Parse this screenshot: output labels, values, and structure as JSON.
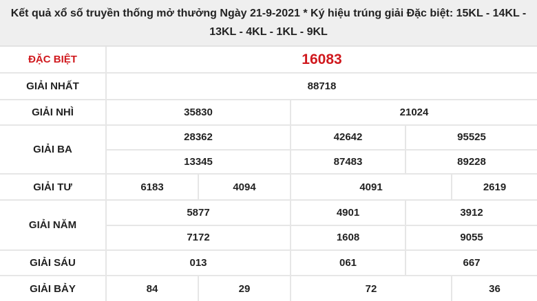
{
  "header": {
    "title": "Kết quả xổ số truyền thống mở thưởng Ngày 21-9-2021 * Ký hiệu trúng giải Đặc biệt: 15KL - 14KL - 13KL - 4KL - 1KL - 9KL"
  },
  "colors": {
    "special": "#d0191e",
    "header_bg": "#efefef"
  },
  "prizes": {
    "dac_biet": {
      "label": "ĐẶC BIỆT",
      "numbers": [
        "16083"
      ]
    },
    "nhat": {
      "label": "GIẢI NHẤT",
      "numbers": [
        "88718"
      ]
    },
    "nhi": {
      "label": "GIẢI NHÌ",
      "numbers": [
        "35830",
        "21024"
      ]
    },
    "ba": {
      "label": "GIẢI BA",
      "numbers": [
        "28362",
        "42642",
        "95525",
        "13345",
        "87483",
        "89228"
      ]
    },
    "tu": {
      "label": "GIẢI TƯ",
      "numbers": [
        "6183",
        "4094",
        "4091",
        "2619"
      ]
    },
    "nam": {
      "label": "GIẢI NĂM",
      "numbers": [
        "5877",
        "4901",
        "3912",
        "7172",
        "1608",
        "9055"
      ]
    },
    "sau": {
      "label": "GIẢI SÁU",
      "numbers": [
        "013",
        "061",
        "667"
      ]
    },
    "bay": {
      "label": "GIẢI BẢY",
      "numbers": [
        "84",
        "29",
        "72",
        "36"
      ]
    }
  }
}
